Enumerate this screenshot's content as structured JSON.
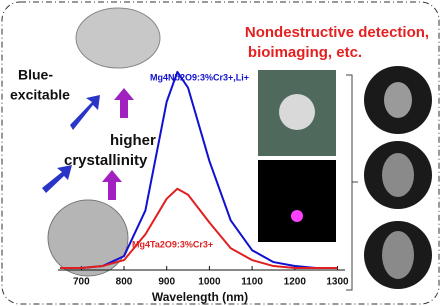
{
  "chart_data": {
    "type": "line",
    "annotations": [
      "Nondestructive detection,",
      "bioimaging, etc.",
      "Blue-",
      "excitable",
      "higher",
      "crystallinity"
    ],
    "x_label": "Wavelength (nm)",
    "x": [
      650,
      700,
      750,
      800,
      850,
      900,
      925,
      950,
      1000,
      1050,
      1100,
      1150,
      1200,
      1250,
      1300
    ],
    "series": [
      {
        "name": "Mg4Nb2O9:3%Cr3+,Li+",
        "color": "#1010d0",
        "values": [
          0.01,
          0.01,
          0.02,
          0.07,
          0.3,
          0.85,
          1.0,
          0.92,
          0.55,
          0.25,
          0.1,
          0.04,
          0.02,
          0.01,
          0.01
        ]
      },
      {
        "name": "Mg4Ta2O9:3%Cr3+",
        "color": "#e02020",
        "values": [
          0.01,
          0.01,
          0.02,
          0.05,
          0.18,
          0.36,
          0.41,
          0.38,
          0.24,
          0.11,
          0.05,
          0.02,
          0.01,
          0.01,
          0.01
        ]
      }
    ],
    "xlim": [
      650,
      1320
    ],
    "xticks": [
      700,
      800,
      900,
      1000,
      1100,
      1200,
      1300
    ],
    "ylim": [
      0,
      1.05
    ]
  }
}
